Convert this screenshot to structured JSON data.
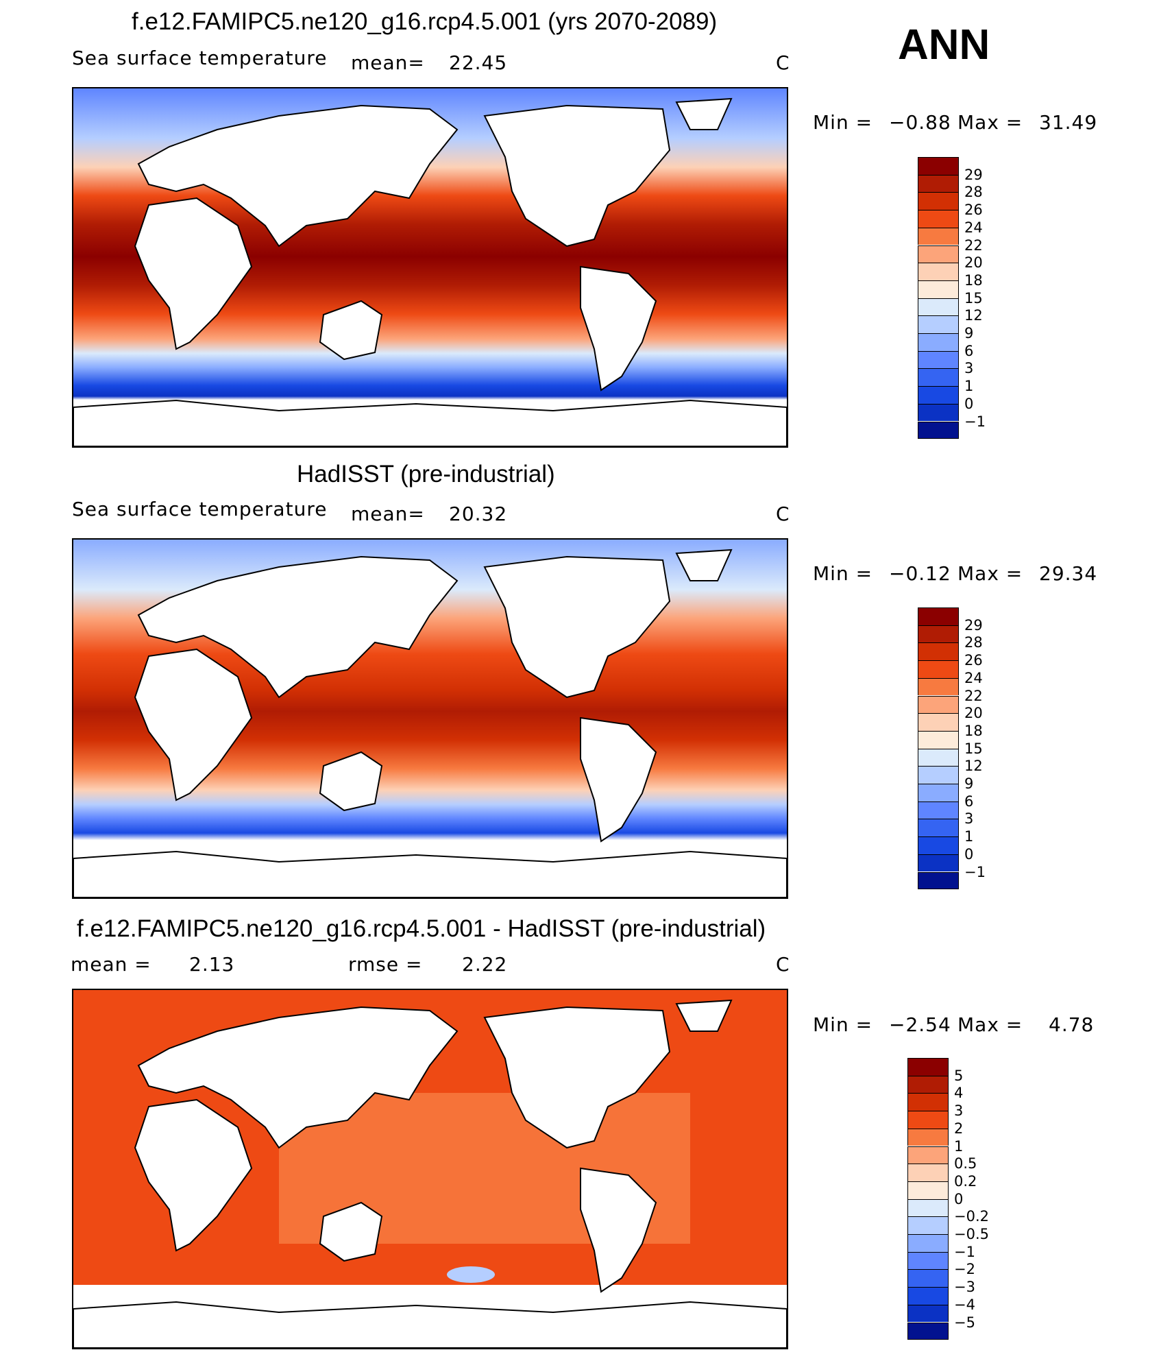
{
  "season": "ANN",
  "chart_data": [
    {
      "type": "heatmap",
      "title": "f.e12.FAMIPC5.ne120_g16.rcp4.5.001 (yrs 2070-2089)",
      "variable": "Sea surface temperature",
      "mean_label": "mean=",
      "mean": "22.45",
      "units": "C",
      "min_label": "Min =",
      "min": "−0.88",
      "max_label": "Max =",
      "max": "31.49",
      "levels": [
        "29",
        "28",
        "26",
        "24",
        "22",
        "20",
        "18",
        "15",
        "12",
        "9",
        "6",
        "3",
        "1",
        "0",
        "−1"
      ],
      "colors": [
        "#8b0000",
        "#b01c04",
        "#d23004",
        "#ee4a14",
        "#f77a40",
        "#fca47a",
        "#fdd1b6",
        "#fdebda",
        "#dbeafb",
        "#b5ceff",
        "#8aacff",
        "#5f85ff",
        "#3564f2",
        "#1849e3",
        "#0b32c4",
        "#02128f"
      ]
    },
    {
      "type": "heatmap",
      "title": "HadISST (pre-industrial)",
      "variable": "Sea surface temperature",
      "mean_label": "mean=",
      "mean": "20.32",
      "units": "C",
      "min_label": "Min =",
      "min": "−0.12",
      "max_label": "Max =",
      "max": "29.34",
      "levels": [
        "29",
        "28",
        "26",
        "24",
        "22",
        "20",
        "18",
        "15",
        "12",
        "9",
        "6",
        "3",
        "1",
        "0",
        "−1"
      ],
      "colors": [
        "#8b0000",
        "#b01c04",
        "#d23004",
        "#ee4a14",
        "#f77a40",
        "#fca47a",
        "#fdd1b6",
        "#fdebda",
        "#dbeafb",
        "#b5ceff",
        "#8aacff",
        "#5f85ff",
        "#3564f2",
        "#1849e3",
        "#0b32c4",
        "#02128f"
      ]
    },
    {
      "type": "heatmap",
      "title": "f.e12.FAMIPC5.ne120_g16.rcp4.5.001 - HadISST (pre-industrial)",
      "mean_label": "mean =",
      "mean": "2.13",
      "rmse_label": "rmse =",
      "rmse": "2.22",
      "units": "C",
      "min_label": "Min =",
      "min": "−2.54",
      "max_label": "Max =",
      "max": "4.78",
      "levels": [
        "5",
        "4",
        "3",
        "2",
        "1",
        "0.5",
        "0.2",
        "0",
        "−0.2",
        "−0.5",
        "−1",
        "−2",
        "−3",
        "−4",
        "−5"
      ],
      "colors": [
        "#8b0000",
        "#b01c04",
        "#d23004",
        "#ee4a14",
        "#f77a40",
        "#fca47a",
        "#fdd1b6",
        "#fdebda",
        "#dbeafb",
        "#b5ceff",
        "#8aacff",
        "#5f85ff",
        "#3564f2",
        "#1849e3",
        "#0b32c4",
        "#02128f"
      ]
    }
  ]
}
